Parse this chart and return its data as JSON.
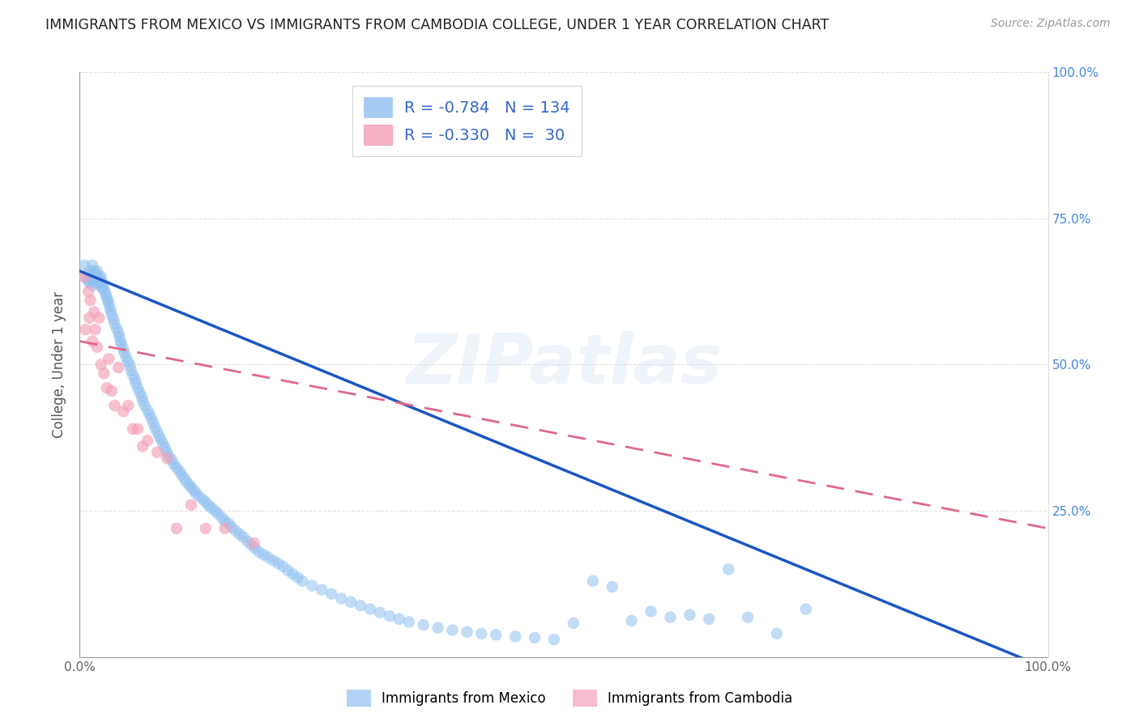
{
  "title": "IMMIGRANTS FROM MEXICO VS IMMIGRANTS FROM CAMBODIA COLLEGE, UNDER 1 YEAR CORRELATION CHART",
  "source": "Source: ZipAtlas.com",
  "ylabel": "College, Under 1 year",
  "xlim": [
    0.0,
    1.0
  ],
  "ylim": [
    0.0,
    1.0
  ],
  "watermark_text": "ZIPatlas",
  "mexico_color": "#90c0f0",
  "cambodia_color": "#f4a0b8",
  "mexico_line_color": "#1a56c4",
  "cambodia_line_color": "#e06888",
  "grid_color": "#cccccc",
  "background_color": "#ffffff",
  "legend_r_mexico": "R = -0.784",
  "legend_n_mexico": "N = 134",
  "legend_r_cambodia": "R = -0.330",
  "legend_n_cambodia": "N =  30",
  "mexico_line_start_y": 0.66,
  "mexico_line_end_y": -0.02,
  "cambodia_line_start_y": 0.54,
  "cambodia_line_end_y": 0.22,
  "mexico_points_x": [
    0.005,
    0.007,
    0.008,
    0.01,
    0.01,
    0.011,
    0.012,
    0.013,
    0.013,
    0.015,
    0.015,
    0.016,
    0.017,
    0.018,
    0.018,
    0.019,
    0.02,
    0.021,
    0.022,
    0.022,
    0.023,
    0.024,
    0.025,
    0.026,
    0.027,
    0.028,
    0.029,
    0.03,
    0.031,
    0.032,
    0.033,
    0.035,
    0.036,
    0.038,
    0.04,
    0.041,
    0.042,
    0.043,
    0.045,
    0.046,
    0.048,
    0.05,
    0.052,
    0.053,
    0.055,
    0.057,
    0.058,
    0.06,
    0.062,
    0.064,
    0.065,
    0.067,
    0.07,
    0.072,
    0.074,
    0.076,
    0.078,
    0.08,
    0.082,
    0.084,
    0.086,
    0.088,
    0.09,
    0.092,
    0.095,
    0.097,
    0.1,
    0.103,
    0.105,
    0.108,
    0.11,
    0.113,
    0.115,
    0.118,
    0.12,
    0.123,
    0.127,
    0.13,
    0.133,
    0.136,
    0.14,
    0.143,
    0.147,
    0.15,
    0.154,
    0.157,
    0.161,
    0.165,
    0.169,
    0.173,
    0.177,
    0.181,
    0.185,
    0.19,
    0.195,
    0.2,
    0.205,
    0.21,
    0.215,
    0.22,
    0.225,
    0.23,
    0.24,
    0.25,
    0.26,
    0.27,
    0.28,
    0.29,
    0.3,
    0.31,
    0.32,
    0.33,
    0.34,
    0.355,
    0.37,
    0.385,
    0.4,
    0.415,
    0.43,
    0.45,
    0.47,
    0.49,
    0.51,
    0.53,
    0.55,
    0.57,
    0.59,
    0.61,
    0.63,
    0.65,
    0.67,
    0.69,
    0.72,
    0.75
  ],
  "mexico_points_y": [
    0.67,
    0.65,
    0.645,
    0.66,
    0.64,
    0.655,
    0.648,
    0.67,
    0.635,
    0.66,
    0.642,
    0.655,
    0.648,
    0.66,
    0.638,
    0.645,
    0.65,
    0.642,
    0.638,
    0.65,
    0.632,
    0.63,
    0.638,
    0.625,
    0.62,
    0.615,
    0.61,
    0.605,
    0.598,
    0.592,
    0.585,
    0.578,
    0.57,
    0.562,
    0.555,
    0.548,
    0.54,
    0.535,
    0.528,
    0.52,
    0.512,
    0.505,
    0.498,
    0.49,
    0.482,
    0.475,
    0.468,
    0.46,
    0.452,
    0.445,
    0.438,
    0.43,
    0.422,
    0.415,
    0.408,
    0.4,
    0.392,
    0.385,
    0.378,
    0.372,
    0.365,
    0.358,
    0.35,
    0.343,
    0.337,
    0.33,
    0.324,
    0.318,
    0.312,
    0.306,
    0.3,
    0.295,
    0.29,
    0.285,
    0.28,
    0.275,
    0.27,
    0.265,
    0.26,
    0.255,
    0.25,
    0.245,
    0.238,
    0.232,
    0.228,
    0.222,
    0.216,
    0.21,
    0.205,
    0.198,
    0.192,
    0.186,
    0.18,
    0.175,
    0.17,
    0.165,
    0.16,
    0.155,
    0.148,
    0.142,
    0.136,
    0.13,
    0.122,
    0.115,
    0.108,
    0.1,
    0.094,
    0.088,
    0.082,
    0.076,
    0.07,
    0.065,
    0.06,
    0.055,
    0.05,
    0.046,
    0.043,
    0.04,
    0.038,
    0.035,
    0.033,
    0.03,
    0.058,
    0.13,
    0.12,
    0.062,
    0.078,
    0.068,
    0.072,
    0.065,
    0.15,
    0.068,
    0.04,
    0.082
  ],
  "cambodia_points_x": [
    0.005,
    0.006,
    0.009,
    0.01,
    0.011,
    0.013,
    0.015,
    0.016,
    0.018,
    0.02,
    0.022,
    0.025,
    0.028,
    0.03,
    0.033,
    0.036,
    0.04,
    0.045,
    0.05,
    0.055,
    0.06,
    0.065,
    0.07,
    0.08,
    0.09,
    0.1,
    0.115,
    0.13,
    0.15,
    0.18
  ],
  "cambodia_points_y": [
    0.65,
    0.56,
    0.625,
    0.58,
    0.61,
    0.54,
    0.59,
    0.56,
    0.53,
    0.58,
    0.5,
    0.485,
    0.46,
    0.51,
    0.455,
    0.43,
    0.495,
    0.42,
    0.43,
    0.39,
    0.39,
    0.36,
    0.37,
    0.35,
    0.34,
    0.22,
    0.26,
    0.22,
    0.22,
    0.195
  ]
}
